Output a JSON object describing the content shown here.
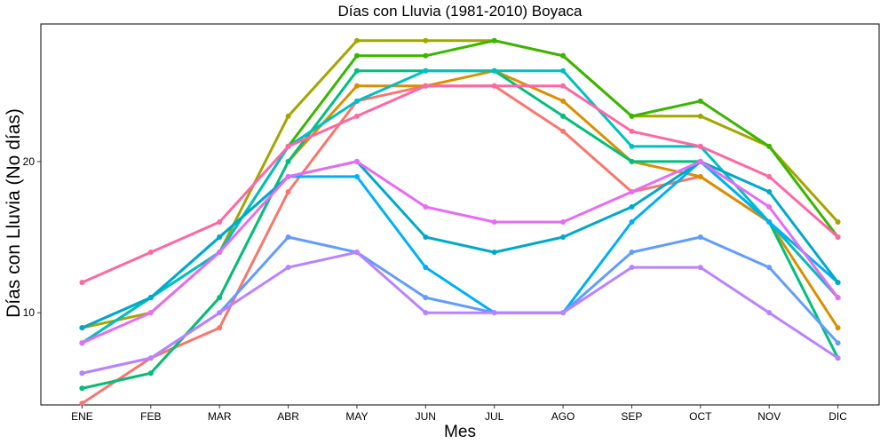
{
  "chart_data": {
    "type": "line",
    "title": "Días con Lluvia (1981-2010)  Boyaca",
    "xlabel": "Mes",
    "ylabel": "Días con Lluvia (No días)",
    "categories": [
      "ENE",
      "FEB",
      "MAR",
      "ABR",
      "MAY",
      "JUN",
      "JUL",
      "AGO",
      "SEP",
      "OCT",
      "NOV",
      "DIC"
    ],
    "ylim": [
      3.9,
      29.1
    ],
    "yticks": [
      10,
      20
    ],
    "grid": false,
    "legend": "none",
    "series": [
      {
        "color": "#f8766d",
        "values": [
          4,
          7,
          9,
          18,
          24,
          25,
          25,
          22,
          18,
          19,
          16,
          11
        ]
      },
      {
        "color": "#d89000",
        "values": [
          5,
          6,
          11,
          20,
          25,
          25,
          26,
          24,
          20,
          19,
          16,
          9
        ]
      },
      {
        "color": "#a3a500",
        "values": [
          9,
          10,
          14,
          23,
          28,
          28,
          28,
          27,
          23,
          23,
          21,
          16
        ]
      },
      {
        "color": "#39b600",
        "values": [
          8,
          11,
          14,
          21,
          27,
          27,
          28,
          27,
          23,
          24,
          21,
          15
        ]
      },
      {
        "color": "#00bf7d",
        "values": [
          5,
          6,
          11,
          20,
          26,
          26,
          26,
          23,
          20,
          20,
          16,
          7
        ]
      },
      {
        "color": "#00bfc4",
        "values": [
          8,
          11,
          14,
          21,
          24,
          26,
          26,
          26,
          21,
          21,
          16,
          11
        ]
      },
      {
        "color": "#00b0f6",
        "values": [
          9,
          11,
          15,
          19,
          19,
          13,
          10,
          10,
          16,
          20,
          16,
          12
        ]
      },
      {
        "color": "#00a9c8",
        "values": [
          9,
          11,
          15,
          19,
          20,
          15,
          14,
          15,
          17,
          20,
          18,
          12
        ]
      },
      {
        "color": "#619cff",
        "values": [
          6,
          7,
          10,
          15,
          14,
          11,
          10,
          10,
          14,
          15,
          13,
          8
        ]
      },
      {
        "color": "#b983ff",
        "values": [
          6,
          7,
          10,
          13,
          14,
          10,
          10,
          10,
          13,
          13,
          10,
          7
        ]
      },
      {
        "color": "#e76bf3",
        "values": [
          8,
          10,
          14,
          19,
          20,
          17,
          16,
          16,
          18,
          20,
          17,
          11
        ]
      },
      {
        "color": "#ff67a4",
        "values": [
          12,
          14,
          16,
          21,
          23,
          25,
          25,
          25,
          22,
          21,
          19,
          15
        ]
      }
    ]
  }
}
